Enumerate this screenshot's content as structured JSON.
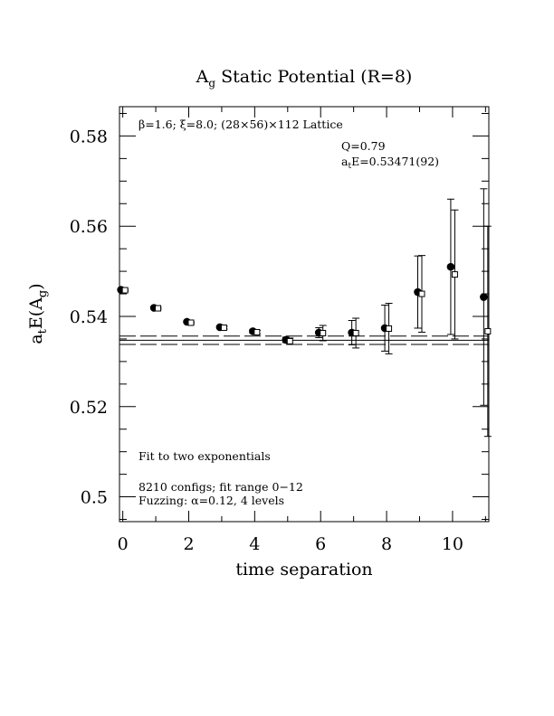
{
  "chart_data": {
    "type": "scatter",
    "title": "A",
    "title_sub": "g",
    "title_rest": " Static Potential (R=8)",
    "xlabel": "time separation",
    "ylabel_main": "a",
    "ylabel_sub1": "t",
    "ylabel_mid": "E(A",
    "ylabel_sub2": "g",
    "ylabel_end": ")",
    "xlim": [
      -0.1,
      11.1
    ],
    "ylim": [
      0.4945,
      0.5865
    ],
    "xticks": [
      0,
      2,
      4,
      6,
      8,
      10
    ],
    "xtick_labels": [
      "0",
      "2",
      "4",
      "6",
      "8",
      "10"
    ],
    "yticks": [
      0.5,
      0.52,
      0.54,
      0.56,
      0.58
    ],
    "ytick_labels": [
      "0.5",
      "0.52",
      "0.54",
      "0.56",
      "0.58"
    ],
    "annotations": {
      "lattice": "β=1.6; ξ=8.0; (28×56)×112 Lattice",
      "q": "Q=0.79",
      "energy_pre": "a",
      "energy_sub": "t",
      "energy_post": "E=0.53471(92)",
      "fit": "Fit to two exponentials",
      "configs": "8210 configs; fit range 0−12",
      "fuzzing": "Fuzzing: α=0.12, 4 levels"
    },
    "fit_lines": {
      "center": 0.53471,
      "lower": 0.53379,
      "upper": 0.53563
    },
    "series": [
      {
        "marker": "filled-circle",
        "points": [
          {
            "x": 0,
            "y": 0.5459,
            "err": 0.0002
          },
          {
            "x": 1,
            "y": 0.5419,
            "err": 0.0002
          },
          {
            "x": 2,
            "y": 0.5388,
            "err": 0.0002
          },
          {
            "x": 3,
            "y": 0.5376,
            "err": 0.0003
          },
          {
            "x": 4,
            "y": 0.5367,
            "err": 0.0004
          },
          {
            "x": 5,
            "y": 0.5348,
            "err": 0.0006
          },
          {
            "x": 6,
            "y": 0.5364,
            "err": 0.0011
          },
          {
            "x": 7,
            "y": 0.5364,
            "err": 0.0027
          },
          {
            "x": 8,
            "y": 0.5374,
            "err": 0.0051
          },
          {
            "x": 9,
            "y": 0.5454,
            "err": 0.008
          },
          {
            "x": 10,
            "y": 0.551,
            "err": 0.015
          },
          {
            "x": 11,
            "y": 0.5443,
            "err": 0.024
          }
        ]
      },
      {
        "marker": "open-square",
        "points": [
          {
            "x": 0,
            "y": 0.5458,
            "err": 0.0002
          },
          {
            "x": 1,
            "y": 0.5418,
            "err": 0.0002
          },
          {
            "x": 2,
            "y": 0.5386,
            "err": 0.0002
          },
          {
            "x": 3,
            "y": 0.5375,
            "err": 0.0003
          },
          {
            "x": 4,
            "y": 0.5365,
            "err": 0.0004
          },
          {
            "x": 5,
            "y": 0.5345,
            "err": 0.0007
          },
          {
            "x": 6,
            "y": 0.5363,
            "err": 0.0017
          },
          {
            "x": 7,
            "y": 0.5363,
            "err": 0.0033
          },
          {
            "x": 8,
            "y": 0.5373,
            "err": 0.0056
          },
          {
            "x": 9,
            "y": 0.545,
            "err": 0.0085
          },
          {
            "x": 10,
            "y": 0.5493,
            "err": 0.0143
          },
          {
            "x": 11,
            "y": 0.5367,
            "err": 0.0233
          }
        ]
      }
    ]
  }
}
